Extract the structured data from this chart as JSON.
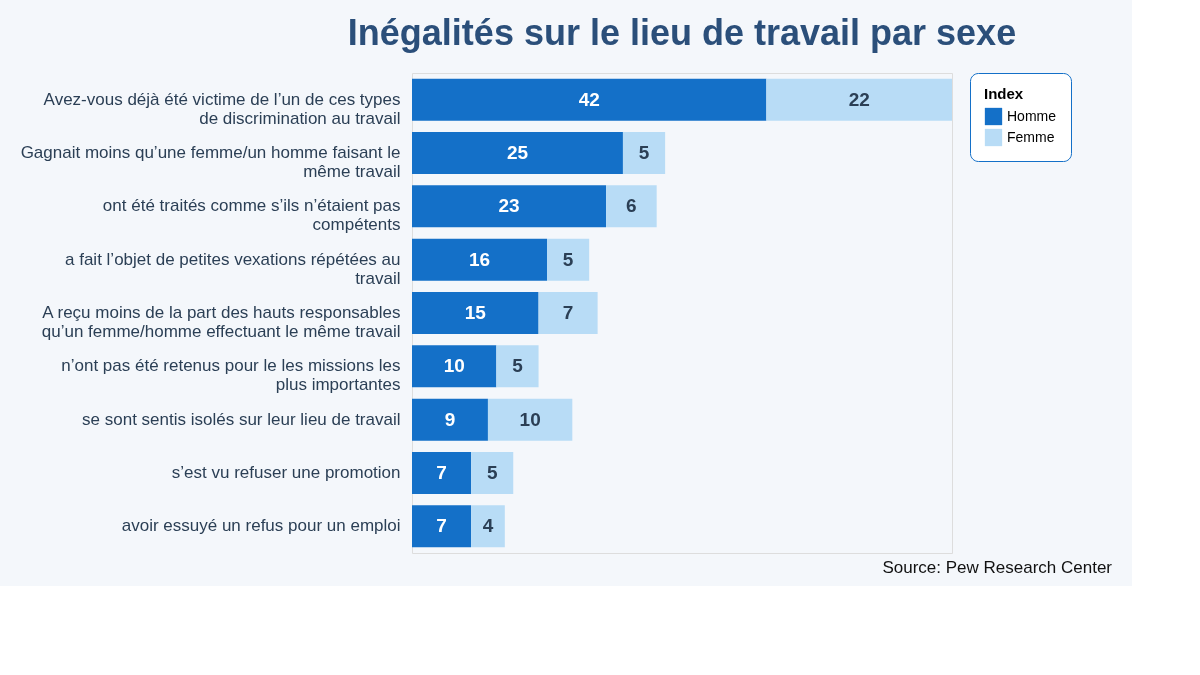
{
  "chart_data": {
    "type": "bar",
    "orientation": "horizontal",
    "stacked": true,
    "title": "Inégalités sur le lieu de travail par sexe",
    "categories": [
      "Avez-vous déjà été victime de l’un de ces types de discrimination au travail",
      "Gagnait moins qu’une femme/un homme faisant le même travail",
      "ont été traités comme s’ils n’étaient pas compétents",
      "a fait l’objet de petites vexations répétées au travail",
      "A reçu moins de la part des hauts responsables qu’un femme/homme effectuant le même travail",
      "n’ont pas été retenus pour le les missions les plus importantes",
      "se sont sentis isolés sur leur lieu de travail",
      "s’est vu refuser une promotion",
      "avoir essuyé un refus pour un emploi"
    ],
    "series": [
      {
        "name": "Homme",
        "color": "#1470c8",
        "values": [
          42,
          25,
          23,
          16,
          15,
          10,
          9,
          7,
          7
        ]
      },
      {
        "name": "Femme",
        "color": "#b8dcf6",
        "values": [
          22,
          5,
          6,
          5,
          7,
          5,
          10,
          5,
          4
        ]
      }
    ],
    "legend_title": "Index",
    "legend": "right",
    "data_labels": true,
    "annotations": [
      "Source: Pew Research Center"
    ]
  }
}
